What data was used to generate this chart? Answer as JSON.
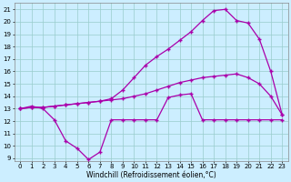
{
  "xlabel": "Windchill (Refroidissement éolien,°C)",
  "xlim": [
    -0.5,
    23.5
  ],
  "ylim": [
    8.8,
    21.5
  ],
  "yticks": [
    9,
    10,
    11,
    12,
    13,
    14,
    15,
    16,
    17,
    18,
    19,
    20,
    21
  ],
  "xticks": [
    0,
    1,
    2,
    3,
    4,
    5,
    6,
    7,
    8,
    9,
    10,
    11,
    12,
    13,
    14,
    15,
    16,
    17,
    18,
    19,
    20,
    21,
    22,
    23
  ],
  "bg_color": "#cceeff",
  "line_color": "#aa00aa",
  "grid_color": "#99cccc",
  "line1_y": [
    13.0,
    13.2,
    13.0,
    12.1,
    10.4,
    9.8,
    8.9,
    9.5,
    12.1,
    12.1,
    12.1,
    12.1,
    12.1,
    13.9,
    14.1,
    14.2,
    12.1,
    12.1,
    12.1,
    12.1,
    12.1,
    12.1,
    12.1,
    12.1
  ],
  "line2_y": [
    13.0,
    13.1,
    13.1,
    13.2,
    13.3,
    13.4,
    13.5,
    13.6,
    13.7,
    13.8,
    14.0,
    14.2,
    14.5,
    14.8,
    15.1,
    15.3,
    15.5,
    15.6,
    15.7,
    15.8,
    15.5,
    15.0,
    14.0,
    12.5
  ],
  "line3_y": [
    13.0,
    13.1,
    13.1,
    13.2,
    13.3,
    13.4,
    13.5,
    13.6,
    13.8,
    14.5,
    15.5,
    16.5,
    17.2,
    17.8,
    18.5,
    19.2,
    20.1,
    20.9,
    21.0,
    20.1,
    19.9,
    18.6,
    16.0,
    12.5
  ]
}
